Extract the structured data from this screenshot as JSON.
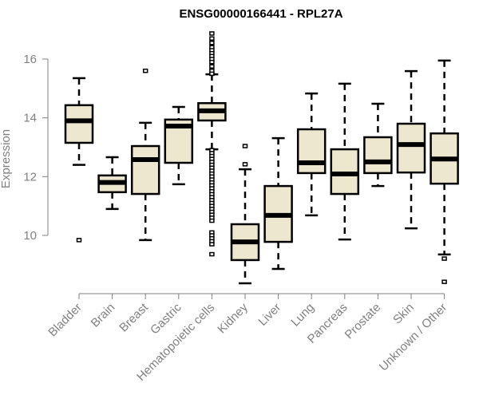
{
  "chart_data": {
    "type": "boxplot",
    "title": "ENSG00000166441 - RPL27A",
    "xlabel": "",
    "ylabel": "Expression",
    "ylim": [
      8.0,
      17.2
    ],
    "yticks": [
      10,
      12,
      14,
      16
    ],
    "grid": false,
    "box_fill": "#ede7d0",
    "box_stroke": "#000000",
    "axis_color": "#808080",
    "categories": [
      "Bladder",
      "Brain",
      "Breast",
      "Gastric",
      "Hematopoietic cells",
      "Kidney",
      "Liver",
      "Lung",
      "Pancreas",
      "Prostate",
      "Skin",
      "Unknown / Other"
    ],
    "boxes": [
      {
        "name": "Bladder",
        "whisker_low": 12.4,
        "q1": 13.15,
        "median": 13.9,
        "q3": 14.43,
        "whisker_high": 15.35,
        "outliers": [
          9.84
        ]
      },
      {
        "name": "Brain",
        "whisker_low": 10.9,
        "q1": 11.47,
        "median": 11.8,
        "q3": 12.04,
        "whisker_high": 12.66,
        "outliers": []
      },
      {
        "name": "Breast",
        "whisker_low": 9.84,
        "q1": 11.41,
        "median": 12.58,
        "q3": 13.04,
        "whisker_high": 13.83,
        "outliers": [
          15.6
        ]
      },
      {
        "name": "Gastric",
        "whisker_low": 11.74,
        "q1": 12.47,
        "median": 13.72,
        "q3": 13.94,
        "whisker_high": 14.37,
        "outliers": []
      },
      {
        "name": "Hematopoietic cells",
        "whisker_low": 12.93,
        "q1": 13.91,
        "median": 14.24,
        "q3": 14.5,
        "whisker_high": 15.48,
        "outliers": [
          16.87,
          16.7,
          16.55,
          16.4,
          16.3,
          16.2,
          16.1,
          16.0,
          15.9,
          15.75,
          15.6,
          15.5,
          12.9,
          12.8,
          12.7,
          12.6,
          12.5,
          12.4,
          12.3,
          12.2,
          12.1,
          12.0,
          11.9,
          11.8,
          11.7,
          11.6,
          11.5,
          11.4,
          11.3,
          11.2,
          11.1,
          11.0,
          10.9,
          10.8,
          10.7,
          10.6,
          10.5,
          10.1,
          10.0,
          9.9,
          9.8,
          9.7,
          9.36
        ]
      },
      {
        "name": "Kidney",
        "whisker_low": 8.37,
        "q1": 9.16,
        "median": 9.78,
        "q3": 10.38,
        "whisker_high": 12.25,
        "outliers": [
          13.04,
          12.42
        ]
      },
      {
        "name": "Liver",
        "whisker_low": 8.86,
        "q1": 9.78,
        "median": 10.68,
        "q3": 11.68,
        "whisker_high": 13.31,
        "outliers": []
      },
      {
        "name": "Lung",
        "whisker_low": 10.68,
        "q1": 12.12,
        "median": 12.47,
        "q3": 13.61,
        "whisker_high": 14.83,
        "outliers": []
      },
      {
        "name": "Pancreas",
        "whisker_low": 9.86,
        "q1": 11.41,
        "median": 12.09,
        "q3": 12.93,
        "whisker_high": 15.16,
        "outliers": []
      },
      {
        "name": "Prostate",
        "whisker_low": 11.68,
        "q1": 12.12,
        "median": 12.5,
        "q3": 13.34,
        "whisker_high": 14.48,
        "outliers": []
      },
      {
        "name": "Skin",
        "whisker_low": 10.24,
        "q1": 12.14,
        "median": 13.09,
        "q3": 13.8,
        "whisker_high": 15.59,
        "outliers": []
      },
      {
        "name": "Unknown / Other",
        "whisker_low": 9.35,
        "q1": 11.76,
        "median": 12.6,
        "q3": 13.47,
        "whisker_high": 15.95,
        "outliers": [
          9.21,
          8.42
        ]
      }
    ]
  }
}
